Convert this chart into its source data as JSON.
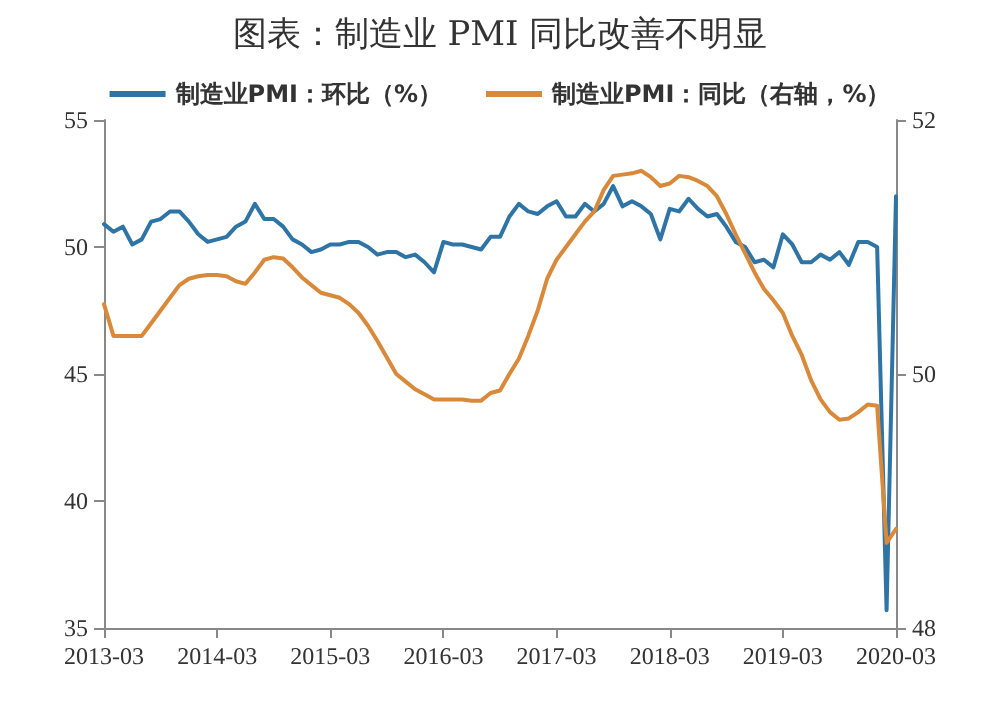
{
  "chart_data": {
    "type": "line",
    "title": "图表：制造业 PMI 同比改善不明显",
    "categories": [
      "2013-03",
      null,
      null,
      null,
      null,
      null,
      null,
      null,
      null,
      null,
      null,
      null,
      "2014-03",
      null,
      null,
      null,
      null,
      null,
      null,
      null,
      null,
      null,
      null,
      null,
      "2015-03",
      null,
      null,
      null,
      null,
      null,
      null,
      null,
      null,
      null,
      null,
      null,
      "2016-03",
      null,
      null,
      null,
      null,
      null,
      null,
      null,
      null,
      null,
      null,
      null,
      "2017-03",
      null,
      null,
      null,
      null,
      null,
      null,
      null,
      null,
      null,
      null,
      null,
      "2018-03",
      null,
      null,
      null,
      null,
      null,
      null,
      null,
      null,
      null,
      null,
      null,
      "2019-03",
      null,
      null,
      null,
      null,
      null,
      null,
      null,
      null,
      null,
      null,
      null,
      "2020-03"
    ],
    "series": [
      {
        "name": "制造业PMI：环比（%）",
        "color": "#2e75a6",
        "values": [
          50.9,
          50.6,
          50.8,
          50.1,
          50.3,
          51.0,
          51.1,
          51.4,
          51.4,
          51.0,
          50.5,
          50.2,
          50.3,
          50.4,
          50.8,
          51.0,
          51.7,
          51.1,
          51.1,
          50.8,
          50.3,
          50.1,
          49.8,
          49.9,
          50.1,
          50.1,
          50.2,
          50.2,
          50.0,
          49.7,
          49.8,
          49.8,
          49.6,
          49.7,
          49.4,
          49.0,
          50.2,
          50.1,
          50.1,
          50.0,
          49.9,
          50.4,
          50.4,
          51.2,
          51.7,
          51.4,
          51.3,
          51.6,
          51.8,
          51.2,
          51.2,
          51.7,
          51.4,
          51.7,
          52.4,
          51.6,
          51.8,
          51.6,
          51.3,
          50.3,
          51.5,
          51.4,
          51.9,
          51.5,
          51.2,
          51.3,
          50.8,
          50.2,
          50.0,
          49.4,
          49.5,
          49.2,
          50.5,
          50.1,
          49.4,
          49.4,
          49.7,
          49.5,
          49.8,
          49.3,
          50.2,
          50.2,
          50.0,
          35.7,
          52.0
        ]
      },
      {
        "name": "制造业PMI：同比（右轴，%）",
        "color": "#d9893a",
        "axis": "y2",
        "values": [
          50.55,
          50.3,
          50.3,
          50.3,
          50.3,
          50.4,
          50.5,
          50.6,
          50.7,
          50.75,
          50.77,
          50.78,
          50.78,
          50.77,
          50.73,
          50.71,
          50.8,
          50.9,
          50.92,
          50.91,
          50.84,
          50.76,
          50.7,
          50.64,
          50.62,
          50.6,
          50.55,
          50.48,
          50.38,
          50.26,
          50.13,
          50.0,
          49.94,
          49.88,
          49.84,
          49.8,
          49.8,
          49.8,
          49.8,
          49.79,
          49.79,
          49.85,
          49.87,
          50.0,
          50.12,
          50.3,
          50.5,
          50.75,
          50.9,
          51.0,
          51.1,
          51.2,
          51.28,
          51.45,
          51.56,
          51.57,
          51.58,
          51.6,
          51.55,
          51.48,
          51.5,
          51.56,
          51.55,
          51.52,
          51.48,
          51.4,
          51.26,
          51.1,
          50.95,
          50.8,
          50.67,
          50.58,
          50.48,
          50.3,
          50.15,
          49.95,
          49.8,
          49.7,
          49.64,
          49.65,
          49.7,
          49.76,
          49.75,
          48.67,
          48.78
        ]
      }
    ],
    "ylim": [
      35,
      55
    ],
    "yticks": [
      35,
      40,
      45,
      50,
      55
    ],
    "y2lim": [
      48,
      52
    ],
    "y2ticks": [
      48,
      50,
      52
    ],
    "legend": "top",
    "grid": false,
    "marker": "none",
    "line_style": "solid"
  }
}
